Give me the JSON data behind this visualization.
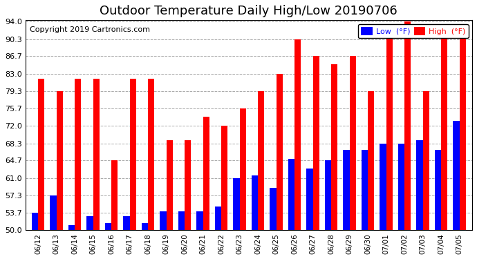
{
  "title": "Outdoor Temperature Daily High/Low 20190706",
  "copyright": "Copyright 2019 Cartronics.com",
  "legend_low": "Low  (°F)",
  "legend_high": "High  (°F)",
  "dates": [
    "06/12",
    "06/13",
    "06/14",
    "06/15",
    "06/16",
    "06/17",
    "06/18",
    "06/19",
    "06/20",
    "06/21",
    "06/22",
    "06/23",
    "06/24",
    "06/25",
    "06/26",
    "06/27",
    "06/28",
    "06/29",
    "06/30",
    "07/01",
    "07/02",
    "07/03",
    "07/04",
    "07/05"
  ],
  "highs": [
    82.0,
    79.3,
    82.0,
    82.0,
    64.7,
    82.0,
    82.0,
    69.0,
    69.0,
    74.0,
    72.0,
    75.7,
    79.3,
    83.0,
    90.3,
    86.7,
    85.0,
    86.7,
    79.3,
    91.0,
    94.0,
    79.3,
    91.0,
    91.0
  ],
  "lows": [
    53.7,
    57.3,
    51.0,
    53.0,
    51.5,
    53.0,
    51.5,
    54.0,
    54.0,
    54.0,
    55.0,
    61.0,
    61.5,
    59.0,
    65.0,
    63.0,
    64.7,
    67.0,
    67.0,
    68.3,
    68.3,
    69.0,
    67.0,
    73.0
  ],
  "ylim_min": 50.0,
  "ylim_max": 94.0,
  "yticks": [
    50.0,
    53.7,
    57.3,
    61.0,
    64.7,
    68.3,
    72.0,
    75.7,
    79.3,
    83.0,
    86.7,
    90.3,
    94.0
  ],
  "bar_width": 0.35,
  "high_color": "#ff0000",
  "low_color": "#0000ff",
  "bg_color": "#ffffff",
  "grid_color": "#aaaaaa",
  "title_fontsize": 13,
  "copyright_fontsize": 8
}
